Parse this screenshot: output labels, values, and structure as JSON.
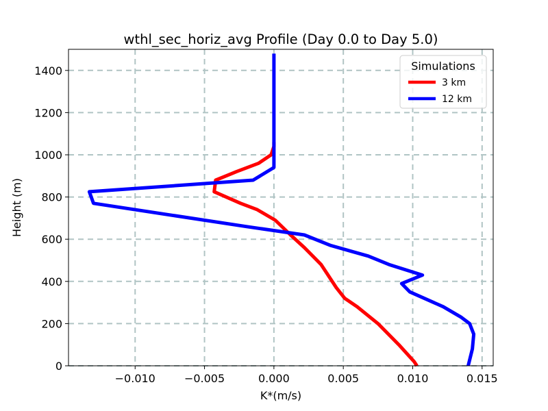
{
  "chart_data": {
    "type": "line",
    "title": "wthl_sec_horiz_avg Profile (Day 0.0 to Day 5.0)",
    "xlabel": "K*(m/s)",
    "ylabel": "Height (m)",
    "xlim": [
      -0.0148,
      0.0158
    ],
    "ylim": [
      0,
      1500
    ],
    "xticks": [
      -0.01,
      -0.005,
      0.0,
      0.005,
      0.01,
      0.015
    ],
    "xtick_labels": [
      "−0.010",
      "−0.005",
      "0.000",
      "0.005",
      "0.010",
      "0.015"
    ],
    "yticks": [
      0,
      200,
      400,
      600,
      800,
      1000,
      1200,
      1400
    ],
    "ytick_labels": [
      "0",
      "200",
      "400",
      "600",
      "800",
      "1000",
      "1200",
      "1400"
    ],
    "grid": true,
    "legend": {
      "title": "Simulations",
      "position": "top-right"
    },
    "series": [
      {
        "name": "3 km",
        "color": "#ff0000",
        "x": [
          0.0103,
          0.0101,
          0.009,
          0.0075,
          0.006,
          0.0051,
          0.0045,
          0.004,
          0.0034,
          0.0022,
          0.0012,
          0.0001,
          -0.0012,
          -0.0024,
          -0.0043,
          -0.0042,
          -0.0027,
          -0.0011,
          -0.0002,
          0.0,
          0.0
        ],
        "y": [
          0,
          20,
          100,
          200,
          280,
          320,
          370,
          420,
          480,
          560,
          620,
          690,
          740,
          770,
          825,
          880,
          920,
          960,
          1000,
          1040,
          1060
        ]
      },
      {
        "name": "12 km",
        "color": "#0000ff",
        "x": [
          0.014,
          0.0143,
          0.0144,
          0.0141,
          0.0135,
          0.0122,
          0.0098,
          0.0092,
          0.0107,
          0.0083,
          0.0068,
          0.0041,
          0.0022,
          -0.002,
          -0.006,
          -0.013,
          -0.0133,
          -0.0015,
          0.0,
          0.0,
          0.0
        ],
        "y": [
          0,
          80,
          150,
          200,
          230,
          280,
          350,
          390,
          430,
          480,
          520,
          570,
          620,
          660,
          700,
          770,
          825,
          880,
          940,
          1100,
          1480
        ]
      }
    ]
  }
}
